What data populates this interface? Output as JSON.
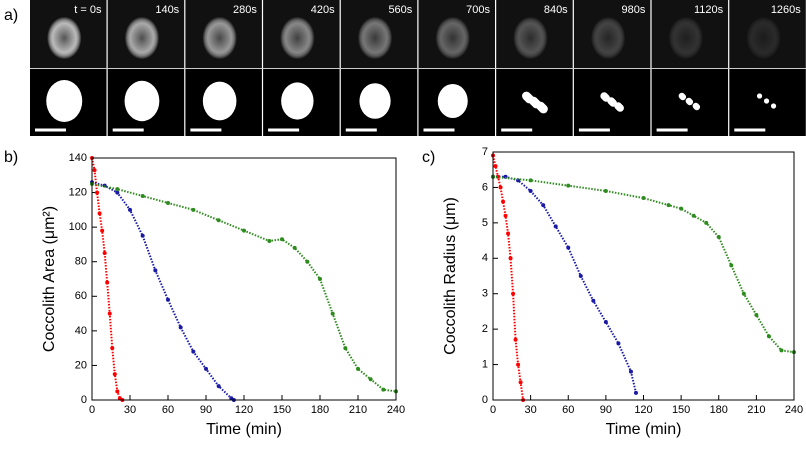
{
  "panel_labels": [
    "a)",
    "b)",
    "c)"
  ],
  "image_strip": {
    "labels": [
      "t = 0s",
      "140s",
      "280s",
      "420s",
      "560s",
      "700s",
      "840s",
      "980s",
      "1120s",
      "1260s"
    ]
  },
  "chart_data": [
    {
      "type": "scatter",
      "x_label": "Time (min)",
      "y_label": "Coccolith Area (μm²)",
      "xlim": [
        0,
        240
      ],
      "xticks": [
        0,
        30,
        60,
        90,
        120,
        150,
        180,
        210,
        240
      ],
      "ylim": [
        0,
        140
      ],
      "yticks": [
        0,
        20,
        40,
        60,
        80,
        100,
        120,
        140
      ],
      "series": [
        {
          "color": "#ff0000",
          "x": [
            0,
            2,
            4,
            6,
            8,
            10,
            12,
            14,
            16,
            18,
            20,
            22,
            24
          ],
          "values": [
            140,
            133,
            120,
            108,
            98,
            85,
            68,
            50,
            30,
            15,
            5,
            1,
            0
          ]
        },
        {
          "color": "#1a1aa6",
          "x": [
            0,
            10,
            20,
            30,
            40,
            50,
            60,
            70,
            80,
            90,
            100,
            110,
            112
          ],
          "values": [
            126,
            124,
            120,
            110,
            95,
            75,
            58,
            42,
            28,
            18,
            8,
            1,
            0
          ]
        },
        {
          "color": "#2e8b1e",
          "x": [
            0,
            20,
            40,
            60,
            80,
            100,
            120,
            140,
            150,
            160,
            170,
            180,
            190,
            200,
            210,
            220,
            230,
            240
          ],
          "values": [
            125,
            122,
            118,
            114,
            110,
            104,
            98,
            92,
            93,
            88,
            80,
            70,
            50,
            30,
            18,
            12,
            6,
            5
          ]
        }
      ]
    },
    {
      "type": "scatter",
      "x_label": "Time (min)",
      "y_label": "Coccolith Radius (μm)",
      "xlim": [
        0,
        240
      ],
      "xticks": [
        0,
        30,
        60,
        90,
        120,
        150,
        180,
        210,
        240
      ],
      "ylim": [
        0,
        7
      ],
      "yticks": [
        0,
        1,
        2,
        3,
        4,
        5,
        6,
        7
      ],
      "series": [
        {
          "color": "#ff0000",
          "x": [
            0,
            2,
            4,
            6,
            8,
            10,
            12,
            14,
            16,
            18,
            20,
            22,
            24
          ],
          "values": [
            6.9,
            6.6,
            6.3,
            6,
            5.6,
            5.2,
            4.7,
            4,
            3,
            1.7,
            1,
            0.5,
            0
          ]
        },
        {
          "color": "#1a1aa6",
          "x": [
            0,
            10,
            20,
            30,
            40,
            50,
            60,
            70,
            80,
            90,
            100,
            110,
            114
          ],
          "values": [
            6.3,
            6.3,
            6.2,
            5.9,
            5.5,
            4.9,
            4.3,
            3.5,
            2.8,
            2.2,
            1.6,
            0.8,
            0.2
          ]
        },
        {
          "color": "#2e8b1e",
          "x": [
            0,
            30,
            60,
            90,
            120,
            140,
            150,
            160,
            170,
            180,
            190,
            200,
            210,
            220,
            230,
            240
          ],
          "values": [
            6.3,
            6.2,
            6.05,
            5.9,
            5.7,
            5.5,
            5.4,
            5.2,
            5,
            4.6,
            3.8,
            3,
            2.4,
            1.8,
            1.4,
            1.35
          ]
        }
      ]
    }
  ]
}
